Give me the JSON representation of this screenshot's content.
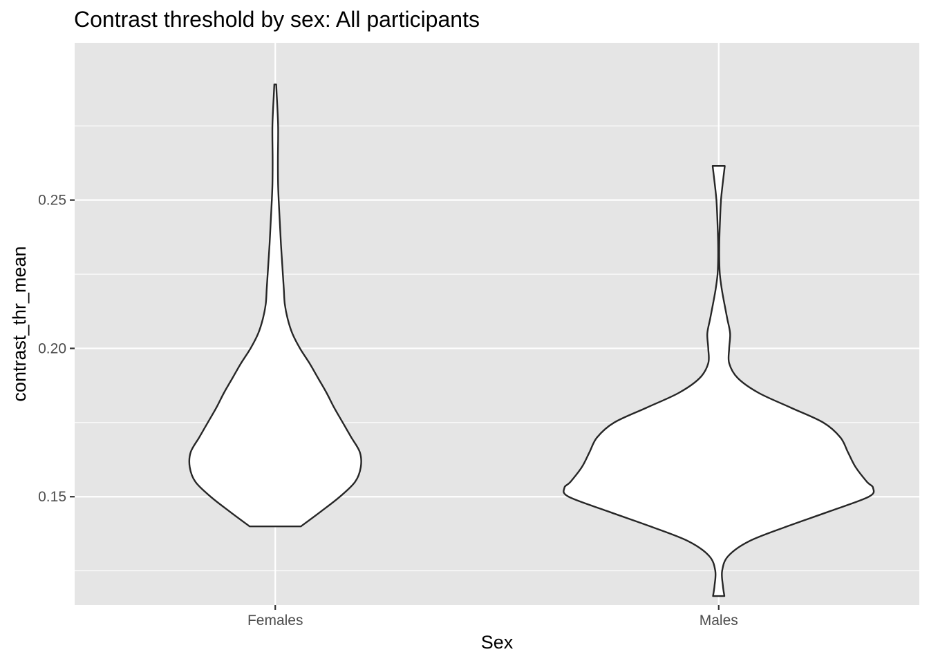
{
  "chart_data": {
    "type": "violin",
    "title": "Contrast threshold by sex: All participants",
    "xlabel": "Sex",
    "ylabel": "contrast_thr_mean",
    "categories": [
      "Females",
      "Males"
    ],
    "ylim": [
      0.1135,
      0.303
    ],
    "yticks": [
      0.15,
      0.2,
      0.25
    ],
    "ytick_labels": [
      "0.15",
      "0.20",
      "0.25"
    ],
    "grid": true,
    "legend": "none",
    "colors": {
      "panel": "#e5e5e5",
      "grid": "#ffffff",
      "fill": "#ffffff",
      "outline": "#262626"
    },
    "series": [
      {
        "name": "Females",
        "min": 0.14,
        "max": 0.289,
        "density_profile": [
          [
            0.14,
            0.135
          ],
          [
            0.145,
            0.24
          ],
          [
            0.15,
            0.34
          ],
          [
            0.155,
            0.42
          ],
          [
            0.16,
            0.45
          ],
          [
            0.165,
            0.445
          ],
          [
            0.17,
            0.4
          ],
          [
            0.175,
            0.355
          ],
          [
            0.18,
            0.31
          ],
          [
            0.185,
            0.27
          ],
          [
            0.19,
            0.225
          ],
          [
            0.195,
            0.18
          ],
          [
            0.2,
            0.13
          ],
          [
            0.205,
            0.09
          ],
          [
            0.21,
            0.065
          ],
          [
            0.215,
            0.05
          ],
          [
            0.22,
            0.045
          ],
          [
            0.225,
            0.04
          ],
          [
            0.23,
            0.035
          ],
          [
            0.235,
            0.03
          ],
          [
            0.24,
            0.026
          ],
          [
            0.245,
            0.022
          ],
          [
            0.25,
            0.018
          ],
          [
            0.255,
            0.015
          ],
          [
            0.26,
            0.014
          ],
          [
            0.265,
            0.014
          ],
          [
            0.27,
            0.015
          ],
          [
            0.275,
            0.015
          ],
          [
            0.28,
            0.012
          ],
          [
            0.285,
            0.008
          ],
          [
            0.289,
            0.005
          ]
        ]
      },
      {
        "name": "Males",
        "min": 0.1165,
        "max": 0.2615,
        "density_profile": [
          [
            0.1165,
            0.03
          ],
          [
            0.12,
            0.022
          ],
          [
            0.125,
            0.018
          ],
          [
            0.13,
            0.05
          ],
          [
            0.135,
            0.16
          ],
          [
            0.14,
            0.36
          ],
          [
            0.145,
            0.58
          ],
          [
            0.15,
            0.79
          ],
          [
            0.153,
            0.812
          ],
          [
            0.155,
            0.78
          ],
          [
            0.16,
            0.72
          ],
          [
            0.165,
            0.68
          ],
          [
            0.17,
            0.64
          ],
          [
            0.175,
            0.55
          ],
          [
            0.18,
            0.38
          ],
          [
            0.185,
            0.21
          ],
          [
            0.19,
            0.1
          ],
          [
            0.195,
            0.055
          ],
          [
            0.2,
            0.055
          ],
          [
            0.205,
            0.06
          ],
          [
            0.21,
            0.045
          ],
          [
            0.215,
            0.03
          ],
          [
            0.22,
            0.016
          ],
          [
            0.225,
            0.006
          ],
          [
            0.23,
            0.003
          ],
          [
            0.235,
            0.003
          ],
          [
            0.24,
            0.005
          ],
          [
            0.245,
            0.008
          ],
          [
            0.25,
            0.012
          ],
          [
            0.255,
            0.02
          ],
          [
            0.2615,
            0.032
          ]
        ]
      }
    ]
  }
}
